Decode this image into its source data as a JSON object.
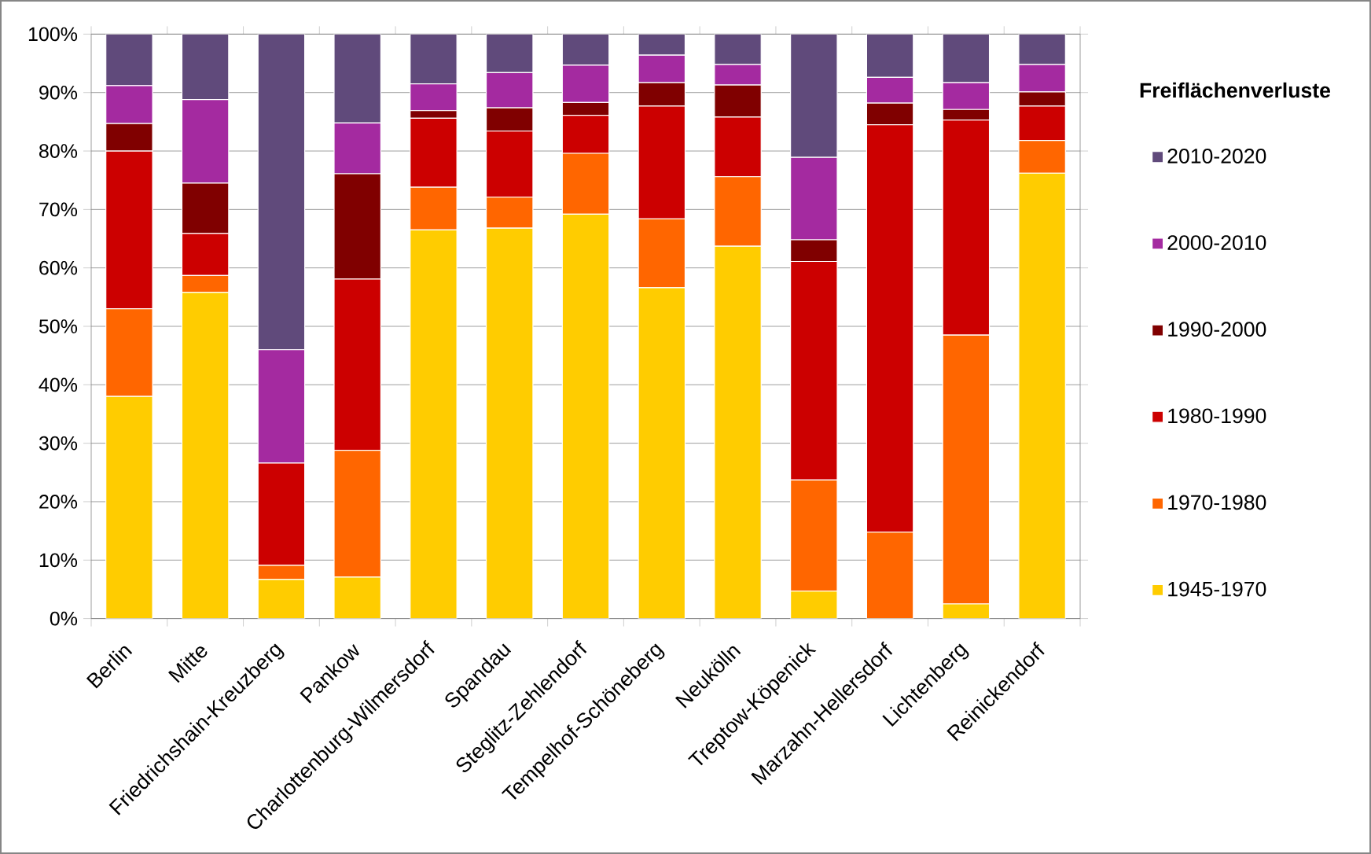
{
  "chart_data": {
    "type": "bar",
    "stacked": true,
    "categories": [
      "Berlin",
      "Mitte",
      "Friedrichshain-Kreuzberg",
      "Pankow",
      "Charlottenburg-Wilmersdorf",
      "Spandau",
      "Steglitz-Zehlendorf",
      "Tempelhof-Schöneberg",
      "Neukölln",
      "Treptow-Köpenick",
      "Marzahn-Hellersdorf",
      "Lichtenberg",
      "Reinickendorf"
    ],
    "series": [
      {
        "name": "1945-1970",
        "color": "#ffcc00",
        "values": [
          38.0,
          55.8,
          6.7,
          7.1,
          66.5,
          66.8,
          69.2,
          56.6,
          63.7,
          4.7,
          0,
          2.5,
          76.2
        ]
      },
      {
        "name": "1970-1980",
        "color": "#ff6600",
        "values": [
          15.0,
          2.9,
          2.4,
          21.7,
          7.3,
          5.3,
          10.4,
          11.8,
          11.9,
          19.0,
          14.8,
          46.0,
          5.6
        ]
      },
      {
        "name": "1980-1990",
        "color": "#cc0000",
        "values": [
          27.0,
          7.2,
          17.5,
          29.3,
          11.8,
          11.3,
          6.5,
          19.3,
          10.2,
          37.4,
          69.7,
          36.8,
          5.9
        ]
      },
      {
        "name": "1990-2000",
        "color": "#800000",
        "values": [
          4.7,
          8.6,
          0,
          18.0,
          1.3,
          4.0,
          2.2,
          4.0,
          5.5,
          3.7,
          3.7,
          1.8,
          2.4
        ]
      },
      {
        "name": "2000-2010",
        "color": "#a42aa0",
        "values": [
          6.5,
          14.3,
          19.4,
          8.7,
          4.6,
          6.0,
          6.4,
          4.7,
          3.5,
          14.1,
          4.4,
          4.6,
          4.7
        ]
      },
      {
        "name": "2010-2020",
        "color": "#604a7b",
        "values": [
          8.8,
          11.2,
          54.0,
          15.2,
          8.5,
          6.6,
          5.3,
          3.6,
          5.2,
          21.1,
          7.4,
          8.3,
          5.2
        ]
      }
    ],
    "ylim": [
      0,
      100
    ],
    "yticks": [
      {
        "value": 0,
        "label": "0%"
      },
      {
        "value": 10,
        "label": "10%"
      },
      {
        "value": 20,
        "label": "20%"
      },
      {
        "value": 30,
        "label": "30%"
      },
      {
        "value": 40,
        "label": "40%"
      },
      {
        "value": 50,
        "label": "50%"
      },
      {
        "value": 60,
        "label": "60%"
      },
      {
        "value": 70,
        "label": "70%"
      },
      {
        "value": 80,
        "label": "80%"
      },
      {
        "value": 90,
        "label": "90%"
      },
      {
        "value": 100,
        "label": "100%"
      }
    ],
    "grid": "y",
    "legend": "right",
    "legend_title": "Freiflächenverluste"
  }
}
